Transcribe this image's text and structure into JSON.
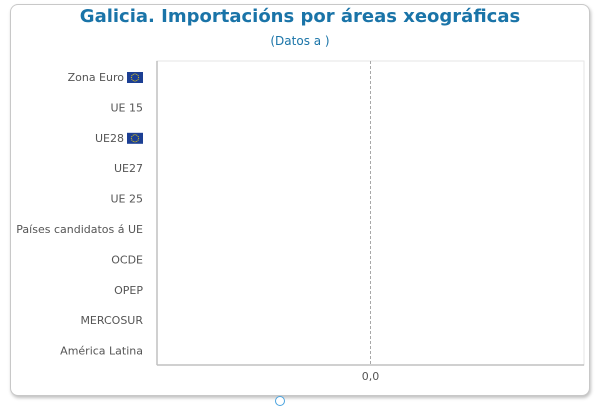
{
  "chart_data": {
    "type": "bar",
    "orientation": "horizontal",
    "title": "Galicia. Importacións por áreas xeográficas",
    "subtitle": "(Datos a )",
    "categories": [
      {
        "label": "Zona Euro",
        "flag": "eu-flag-icon"
      },
      {
        "label": "UE 15",
        "flag": null
      },
      {
        "label": "UE28",
        "flag": "eu-flag-icon"
      },
      {
        "label": "UE27",
        "flag": null
      },
      {
        "label": "UE 25",
        "flag": null
      },
      {
        "label": "Países candidatos á UE",
        "flag": null
      },
      {
        "label": "OCDE",
        "flag": null
      },
      {
        "label": "OPEP",
        "flag": null
      },
      {
        "label": "MERCOSUR",
        "flag": null
      },
      {
        "label": "América Latina",
        "flag": null
      }
    ],
    "values": [
      0,
      0,
      0,
      0,
      0,
      0,
      0,
      0,
      0,
      0
    ],
    "x_ticks": [
      "0,0"
    ],
    "xlim": [
      -1,
      1
    ],
    "grid": false,
    "colors": {
      "title": "#1a74a8",
      "label": "#555555",
      "axis": "#c0c0c0",
      "zero_line": "#a8a8a8",
      "flag_blue": "#1c3f94",
      "flag_star": "#ffdd00"
    }
  }
}
